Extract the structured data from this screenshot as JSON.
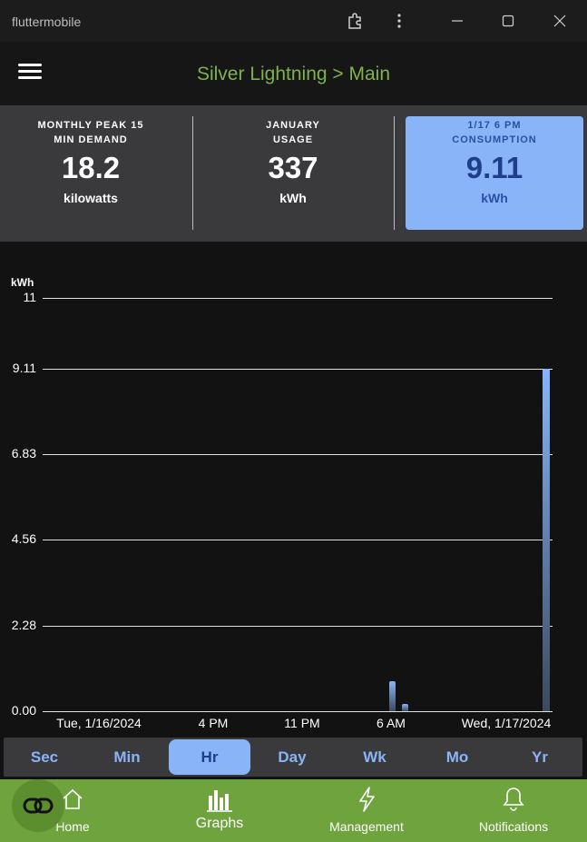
{
  "window": {
    "app_name": "fluttermobile",
    "icons": [
      "extensions-icon",
      "more-vert-icon",
      "minimize-icon",
      "maximize-icon",
      "close-icon"
    ]
  },
  "appbar": {
    "title": "Silver Lightning > Main",
    "title_color": "#7fb34a"
  },
  "stats": [
    {
      "label_line1": "MONTHLY PEAK 15",
      "label_line2": "MIN DEMAND",
      "value": "18.2",
      "unit": "kilowatts",
      "selected": false
    },
    {
      "label_line1": "JANUARY",
      "label_line2": "USAGE",
      "value": "337",
      "unit": "kWh",
      "selected": false
    },
    {
      "label_line1": "1/17 6 PM",
      "label_line2": "CONSUMPTION",
      "value": "9.11",
      "unit": "kWh",
      "selected": true
    }
  ],
  "chart_data": {
    "type": "bar",
    "ylabel": "kWh",
    "ylim": [
      0,
      11
    ],
    "yticks": [
      "11",
      "9.11",
      "6.83",
      "4.56",
      "2.28",
      "0.00"
    ],
    "ytick_values": [
      11,
      9.11,
      6.83,
      4.56,
      2.28,
      0
    ],
    "xticks": [
      "Tue, 1/16/2024",
      "4 PM",
      "11 PM",
      "6 AM",
      "Wed, 1/17/2024"
    ],
    "grid": true,
    "bars": [
      {
        "label": "6 AM",
        "value": 0.8
      },
      {
        "label": "7 AM",
        "value": 0.2
      },
      {
        "label": "6 PM",
        "value": 9.11
      }
    ],
    "bar_color": "#8ab4f8"
  },
  "range_tabs": {
    "items": [
      "Sec",
      "Min",
      "Hr",
      "Day",
      "Wk",
      "Mo",
      "Yr"
    ],
    "active": "Hr"
  },
  "bottom_nav": {
    "items": [
      {
        "label": "Home",
        "icon": "home-icon"
      },
      {
        "label": "Graphs",
        "icon": "bar-chart-icon"
      },
      {
        "label": "Management",
        "icon": "lightning-icon"
      },
      {
        "label": "Notifications",
        "icon": "bell-icon"
      }
    ],
    "active": "Graphs",
    "fab_icon": "loop-link-icon",
    "color": "#6ea33e"
  }
}
